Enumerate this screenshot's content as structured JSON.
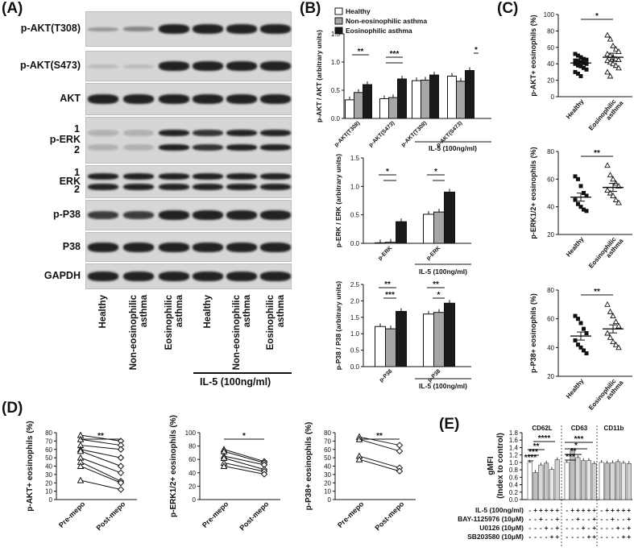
{
  "panels": {
    "A": "(A)",
    "B": "(B)",
    "C": "(C)",
    "D": "(D)",
    "E": "(E)"
  },
  "blot": {
    "rows": [
      "p-AKT(T308)",
      "p-AKT(S473)",
      "AKT",
      "p-ERK",
      "ERK",
      "p-P38",
      "P38",
      "GAPDH"
    ],
    "erk_sub": [
      "1",
      "2"
    ],
    "lanes": [
      "Healthy",
      "Non-eosinophilic asthma",
      "Eosinophilic asthma",
      "Healthy",
      "Non-eosinophilic asthma",
      "Eosinophilic asthma"
    ],
    "lane_lines": [
      [
        "Healthy"
      ],
      [
        "Non-eosinophilic",
        "asthma"
      ],
      [
        "Eosinophilic",
        "asthma"
      ],
      [
        "Healthy"
      ],
      [
        "Non-eosinophilic",
        "asthma"
      ],
      [
        "Eosinophilic",
        "asthma"
      ]
    ],
    "treatment": "IL-5 (100ng/ml)"
  },
  "legend_b": [
    "Healthy",
    "Non-eosinophilic asthma",
    "Eosinophilic asthma"
  ],
  "colors": {
    "healthy": "#ffffff",
    "non_eos": "#a6a6a6",
    "eos": "#1a1a1a"
  },
  "chart_data": [
    {
      "id": "B1",
      "type": "bar",
      "ylabel": "p-AKT / AKT (arbitrary units)",
      "ylim": [
        0,
        1.5
      ],
      "yticks": [
        "0.0",
        "0.5",
        "1.0",
        "1.5"
      ],
      "categories": [
        "p-AKT(T308)",
        "p-AKT(S473)",
        "p-AKT(T308)",
        "p-AKT(S473)"
      ],
      "group_label": "IL-5 (100ng/ml)",
      "series": [
        {
          "name": "Healthy",
          "values": [
            0.33,
            0.35,
            0.67,
            0.75
          ]
        },
        {
          "name": "Non-eosinophilic asthma",
          "values": [
            0.46,
            0.37,
            0.68,
            0.66
          ]
        },
        {
          "name": "Eosinophilic asthma",
          "values": [
            0.6,
            0.7,
            0.77,
            0.85
          ]
        }
      ],
      "annotations": [
        "**",
        "***",
        "*"
      ]
    },
    {
      "id": "B2",
      "type": "bar",
      "ylabel": "p-ERK / ERK (arbitrary units)",
      "ylim": [
        0,
        1.5
      ],
      "yticks": [
        "0.0",
        "0.5",
        "1.0",
        "1.5"
      ],
      "categories": [
        "p-ERK",
        "p-ERK"
      ],
      "group_label": "IL-5 (100ng/ml)",
      "series": [
        {
          "name": "Healthy",
          "values": [
            0.01,
            0.51
          ]
        },
        {
          "name": "Non-eosinophilic asthma",
          "values": [
            0.02,
            0.55
          ]
        },
        {
          "name": "Eosinophilic asthma",
          "values": [
            0.38,
            0.9
          ]
        }
      ],
      "annotations": [
        "*",
        "*"
      ]
    },
    {
      "id": "B3",
      "type": "bar",
      "ylabel": "p-P38 / P38 (arbitrary units)",
      "ylim": [
        0,
        2.5
      ],
      "yticks": [
        "0.0",
        "0.5",
        "1.0",
        "1.5",
        "2.0",
        "2.5"
      ],
      "categories": [
        "p-P38",
        "p-P38"
      ],
      "group_label": "IL-5 (100ng/ml)",
      "series": [
        {
          "name": "Healthy",
          "values": [
            1.22,
            1.6
          ]
        },
        {
          "name": "Non-eosinophilic asthma",
          "values": [
            1.15,
            1.65
          ]
        },
        {
          "name": "Eosinophilic asthma",
          "values": [
            1.68,
            1.93
          ]
        }
      ],
      "annotations": [
        "**",
        "***",
        "**",
        "*"
      ]
    },
    {
      "id": "C1",
      "type": "scatter",
      "ylabel": "p-AKT+ eosinophils (%)",
      "ylim": [
        0,
        100
      ],
      "yticks": [
        "0",
        "20",
        "40",
        "60",
        "80",
        "100"
      ],
      "categories": [
        "Healthy",
        "Eosinophilic asthma"
      ],
      "means": [
        41,
        48
      ],
      "points": [
        [
          52,
          50,
          48,
          46,
          45,
          44,
          43,
          42,
          41,
          40,
          40,
          38,
          37,
          35,
          33,
          30,
          28,
          25
        ],
        [
          75,
          70,
          62,
          58,
          55,
          52,
          50,
          48,
          46,
          45,
          44,
          42,
          40,
          38,
          35,
          30,
          25
        ]
      ],
      "annotation": "*"
    },
    {
      "id": "C2",
      "type": "scatter",
      "ylabel": "p-ERK1/2+ eosinophils (%)",
      "ylim": [
        20,
        80
      ],
      "yticks": [
        "20",
        "40",
        "60",
        "80"
      ],
      "categories": [
        "Healthy",
        "Eosinophilic asthma"
      ],
      "means": [
        47,
        54
      ],
      "points": [
        [
          62,
          60,
          55,
          50,
          48,
          45,
          42,
          40,
          38,
          37
        ],
        [
          70,
          63,
          60,
          57,
          55,
          52,
          50,
          48,
          45,
          43
        ]
      ],
      "annotation": "**"
    },
    {
      "id": "C3",
      "type": "scatter",
      "ylabel": "p-P38+ eosinophils (%)",
      "ylim": [
        20,
        80
      ],
      "yticks": [
        "20",
        "40",
        "60",
        "80"
      ],
      "categories": [
        "Healthy",
        "Eosinophilic asthma"
      ],
      "means": [
        48,
        53
      ],
      "points": [
        [
          62,
          60,
          57,
          53,
          50,
          45,
          42,
          40,
          38,
          36
        ],
        [
          70,
          65,
          62,
          58,
          55,
          50,
          47,
          44,
          42,
          40
        ]
      ],
      "annotation": "**"
    },
    {
      "id": "D1",
      "type": "line",
      "ylabel": "p-AKT+ eosinophils (%)",
      "ylim": [
        0,
        80
      ],
      "yticks": [
        "0",
        "10",
        "20",
        "30",
        "40",
        "50",
        "60",
        "70",
        "80"
      ],
      "categories": [
        "Pre-mepo",
        "Post-mepo"
      ],
      "pairs": [
        [
          77,
          70
        ],
        [
          72,
          65
        ],
        [
          65,
          60
        ],
        [
          60,
          50
        ],
        [
          58,
          40
        ],
        [
          50,
          32
        ],
        [
          45,
          22
        ],
        [
          40,
          20
        ],
        [
          23,
          12
        ]
      ],
      "annotation": "**"
    },
    {
      "id": "D2",
      "type": "line",
      "ylabel": "p-ERK1/2+ eosinophils (%)",
      "ylim": [
        0,
        100
      ],
      "yticks": [
        "0",
        "20",
        "40",
        "60",
        "80",
        "100"
      ],
      "categories": [
        "Pre-mepo",
        "Post-mepo"
      ],
      "pairs": [
        [
          75,
          57
        ],
        [
          72,
          55
        ],
        [
          65,
          52
        ],
        [
          62,
          45
        ],
        [
          55,
          42
        ],
        [
          50,
          38
        ]
      ],
      "annotation": "*"
    },
    {
      "id": "D3",
      "type": "line",
      "ylabel": "p-P38+ eosinophils (%)",
      "ylim": [
        0,
        80
      ],
      "yticks": [
        "0",
        "10",
        "20",
        "30",
        "40",
        "50",
        "60",
        "70",
        "80"
      ],
      "categories": [
        "Pre-mepo",
        "Post-mepo"
      ],
      "pairs": [
        [
          75,
          65
        ],
        [
          72,
          58
        ],
        [
          52,
          38
        ],
        [
          48,
          34
        ]
      ],
      "annotation": "**"
    },
    {
      "id": "E",
      "type": "bar",
      "ylabel": "gMFI (Index to control)",
      "ylim": [
        0,
        1.8
      ],
      "yticks": [
        "0.0",
        "0.2",
        "0.4",
        "0.6",
        "0.8",
        "1.0",
        "1.2",
        "1.4",
        "1.6",
        "1.8"
      ],
      "groups": [
        "CD62L",
        "CD63",
        "CD11b"
      ],
      "series_values": [
        [
          1.0,
          0.73,
          0.93,
          0.98,
          0.81,
          1.07
        ],
        [
          1.0,
          1.32,
          1.13,
          1.05,
          1.05,
          0.97
        ],
        [
          1.0,
          0.98,
          0.99,
          1.02,
          0.98,
          0.97
        ]
      ],
      "conditions": [
        {
          "label": "IL-5 (100ng/ml)",
          "marks": [
            "-",
            "+",
            "+",
            "+",
            "+",
            "+"
          ]
        },
        {
          "label": "BAY-1125976 (10μM)",
          "marks": [
            "-",
            "-",
            "+",
            "-",
            "-",
            "+"
          ]
        },
        {
          "label": "U0126 (10μM)",
          "marks": [
            "-",
            "-",
            "-",
            "+",
            "-",
            "+"
          ]
        },
        {
          "label": "SB203580 (10μM)",
          "marks": [
            "-",
            "-",
            "-",
            "-",
            "+",
            "+"
          ]
        }
      ],
      "annotations": [
        "****",
        "***",
        "**",
        "****",
        "***",
        "**",
        "*",
        "***"
      ]
    }
  ]
}
